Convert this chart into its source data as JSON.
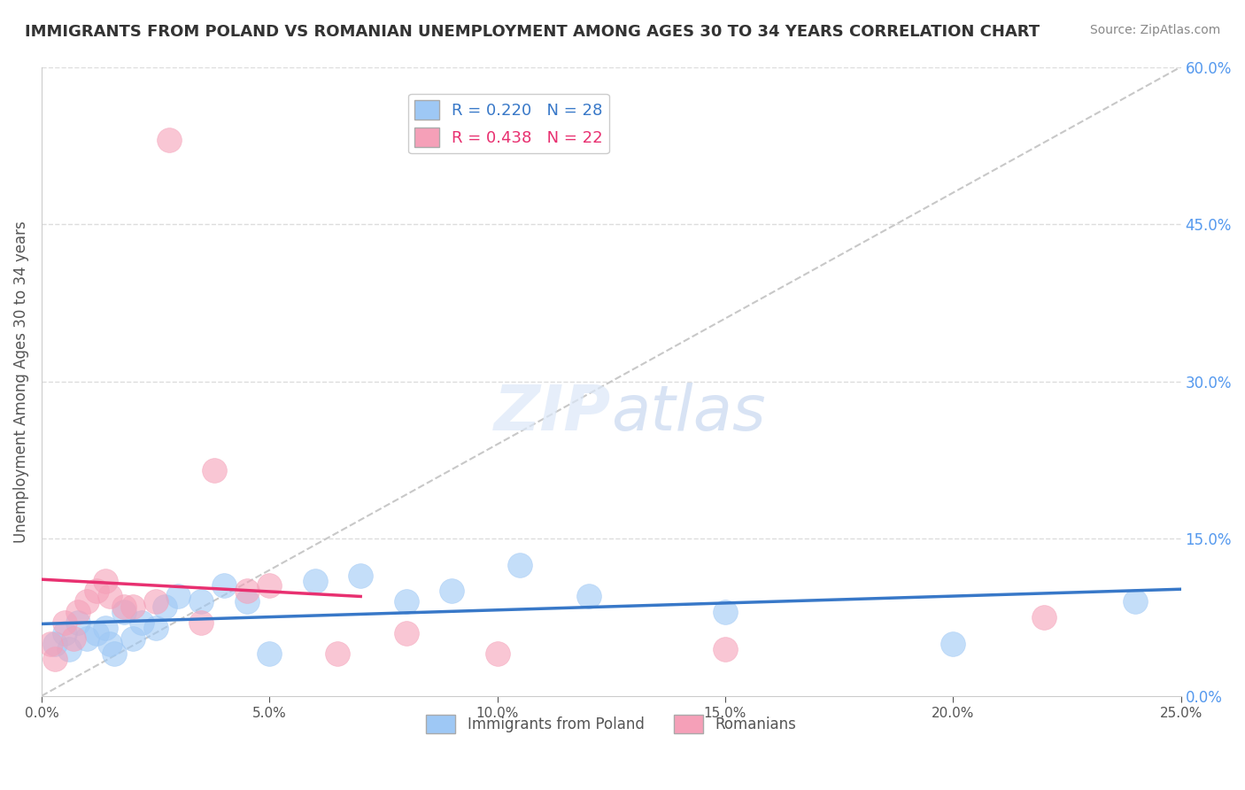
{
  "title": "IMMIGRANTS FROM POLAND VS ROMANIAN UNEMPLOYMENT AMONG AGES 30 TO 34 YEARS CORRELATION CHART",
  "source": "Source: ZipAtlas.com",
  "ylabel": "Unemployment Among Ages 30 to 34 years",
  "xlabel_ticks": [
    0.0,
    5.0,
    10.0,
    15.0,
    20.0,
    25.0
  ],
  "ylabel_right_ticks": [
    0.0,
    15.0,
    30.0,
    45.0,
    60.0
  ],
  "xlim": [
    0.0,
    25.0
  ],
  "ylim": [
    0.0,
    60.0
  ],
  "legend1_label": "R = 0.220   N = 28",
  "legend2_label": "R = 0.438   N = 22",
  "legend1_color": "#3878c8",
  "legend2_color": "#e83070",
  "blue_color": "#9ec8f5",
  "pink_color": "#f5a0b8",
  "trend_blue": "#3878c8",
  "trend_pink": "#e83070",
  "diag_color": "#c8c8c8",
  "poland_x": [
    0.3,
    0.5,
    0.6,
    0.8,
    1.0,
    1.2,
    1.4,
    1.5,
    1.6,
    1.8,
    2.0,
    2.2,
    2.5,
    2.7,
    3.0,
    3.5,
    4.0,
    4.5,
    5.0,
    6.0,
    7.0,
    8.0,
    9.0,
    10.5,
    12.0,
    15.0,
    20.0,
    24.0
  ],
  "poland_y": [
    5.0,
    6.0,
    4.5,
    7.0,
    5.5,
    6.0,
    6.5,
    5.0,
    4.0,
    8.0,
    5.5,
    7.0,
    6.5,
    8.5,
    9.5,
    9.0,
    10.5,
    9.0,
    4.0,
    11.0,
    11.5,
    9.0,
    10.0,
    12.5,
    9.5,
    8.0,
    5.0,
    9.0
  ],
  "romanian_x": [
    0.2,
    0.3,
    0.5,
    0.7,
    0.8,
    1.0,
    1.2,
    1.4,
    1.5,
    1.8,
    2.0,
    2.5,
    2.8,
    3.5,
    3.8,
    4.5,
    5.0,
    6.5,
    8.0,
    10.0,
    15.0,
    22.0
  ],
  "romanian_y": [
    5.0,
    3.5,
    7.0,
    5.5,
    8.0,
    9.0,
    10.0,
    11.0,
    9.5,
    8.5,
    8.5,
    9.0,
    53.0,
    7.0,
    21.5,
    10.0,
    10.5,
    4.0,
    6.0,
    4.0,
    4.5,
    7.5
  ],
  "bottom_legend1": "Immigrants from Poland",
  "bottom_legend2": "Romanians"
}
